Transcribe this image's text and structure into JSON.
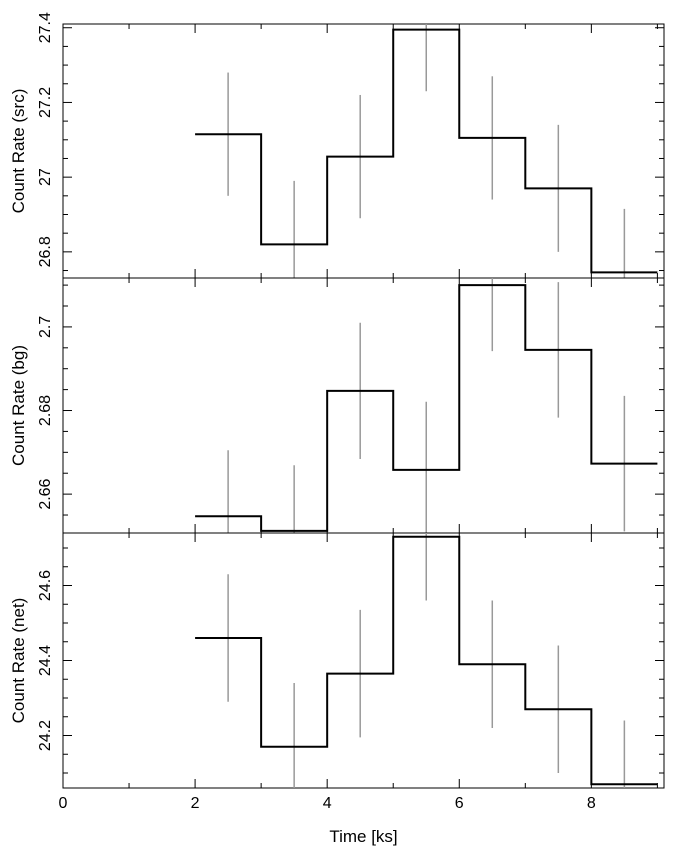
{
  "chart_data": {
    "type": "line",
    "xlabel": "Time [ks]",
    "xlim": [
      0,
      9.1
    ],
    "xticks": [
      0,
      2,
      4,
      6,
      8
    ],
    "bin_edges": [
      2,
      3,
      4,
      5,
      6,
      7,
      8,
      9
    ],
    "bin_centers": [
      2.5,
      3.5,
      4.5,
      5.5,
      6.5,
      7.5,
      8.5
    ],
    "colors": {
      "step": "#000000",
      "errorbar": "#999999",
      "frame": "#000000"
    },
    "panels": [
      {
        "ylabel": "Count Rate (src)",
        "ylim": [
          26.73,
          27.41
        ],
        "yticks": [
          26.8,
          27.0,
          27.2,
          27.4
        ],
        "yticklabels": [
          "26.8",
          "27",
          "27.2",
          "27.4"
        ],
        "values": [
          27.115,
          26.82,
          27.055,
          27.395,
          27.105,
          26.97,
          26.745
        ],
        "errors": [
          0.165,
          0.17,
          0.165,
          0.165,
          0.165,
          0.17,
          0.17
        ]
      },
      {
        "ylabel": "Count Rate (bg)",
        "ylim": [
          2.6507,
          2.7117
        ],
        "yticks": [
          2.66,
          2.68,
          2.7
        ],
        "yticklabels": [
          "2.66",
          "2.68",
          "2.7"
        ],
        "values": [
          2.6547,
          2.6512,
          2.6847,
          2.6658,
          2.71,
          2.6945,
          2.6673
        ],
        "errors": [
          0.0158,
          0.0157,
          0.0163,
          0.0163,
          0.0158,
          0.0162,
          0.0162
        ]
      },
      {
        "ylabel": "Count Rate (net)",
        "ylim": [
          24.06,
          24.74
        ],
        "yticks": [
          24.2,
          24.4,
          24.6
        ],
        "yticklabels": [
          "24.2",
          "24.4",
          "24.6"
        ],
        "values": [
          24.46,
          24.17,
          24.365,
          24.73,
          24.39,
          24.27,
          24.07
        ],
        "errors": [
          0.17,
          0.17,
          0.17,
          0.17,
          0.17,
          0.17,
          0.17
        ]
      }
    ]
  }
}
